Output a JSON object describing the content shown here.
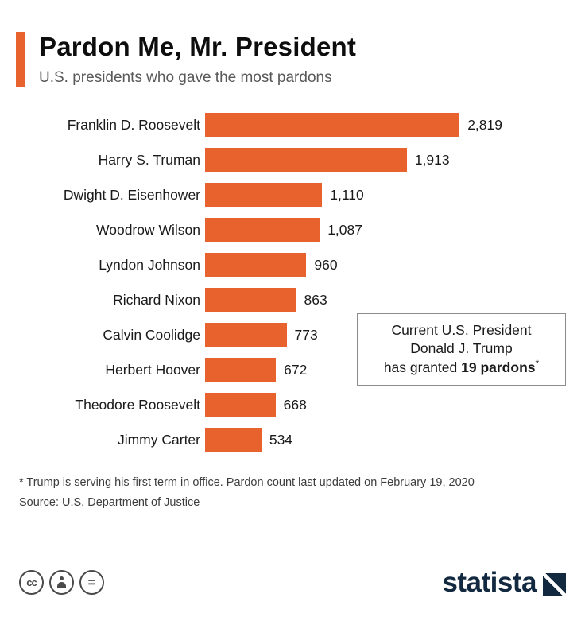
{
  "header": {
    "title": "Pardon Me, Mr. President",
    "subtitle": "U.S. presidents who gave the most pardons"
  },
  "chart_data": {
    "type": "bar",
    "orientation": "horizontal",
    "title": "Pardon Me, Mr. President",
    "subtitle": "U.S. presidents who gave the most pardons",
    "categories": [
      "Franklin D. Roosevelt",
      "Harry S. Truman",
      "Dwight D. Eisenhower",
      "Woodrow Wilson",
      "Lyndon Johnson",
      "Richard Nixon",
      "Calvin Coolidge",
      "Herbert Hoover",
      "Theodore Roosevelt",
      "Jimmy Carter"
    ],
    "values": [
      2819,
      1913,
      1110,
      1087,
      960,
      863,
      773,
      672,
      668,
      534
    ],
    "value_labels": [
      "2,819",
      "1,913",
      "1,110",
      "1,087",
      "960",
      "863",
      "773",
      "672",
      "668",
      "534"
    ],
    "xlim": [
      0,
      2819
    ],
    "grid": false,
    "bar_color": "#e8622d",
    "legend": "none"
  },
  "annotation": {
    "line1": "Current U.S. President",
    "line2": "Donald J. Trump",
    "line3_prefix": "has granted ",
    "line3_bold": "19 pardons",
    "line3_suffix": "*"
  },
  "footnotes": {
    "note": "* Trump is serving his first term in office. Pardon count last updated on February 19, 2020",
    "source": "Source: U.S. Department of Justice"
  },
  "footer": {
    "license": {
      "cc": "cc",
      "equal": "="
    },
    "brand": "statista"
  },
  "colors": {
    "accent": "#e8622d",
    "brand_navy": "#12293f"
  }
}
